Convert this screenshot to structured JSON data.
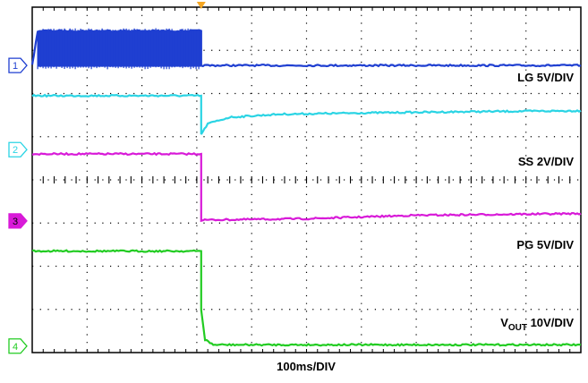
{
  "chart_data": {
    "type": "line",
    "title": "",
    "xlabel": "100ms/DIV",
    "xlim": [
      0,
      10
    ],
    "ylim": [
      -4,
      4
    ],
    "grid": true,
    "trigger_marker_color": "#f5a623",
    "series": [
      {
        "name": "LG 5V/DIV",
        "marker": "1",
        "color": "#1f3fd1",
        "marker_style": "outline",
        "ground": 2.65,
        "points": [
          [
            0,
            2.65
          ],
          [
            0.1,
            3.45
          ],
          [
            3.08,
            3.45
          ],
          [
            3.08,
            2.65
          ],
          [
            10,
            2.65
          ]
        ],
        "noise_band": [
          [
            0.1,
            3.08,
            2.62,
            3.45
          ]
        ]
      },
      {
        "name": "SS 2V/DIV",
        "marker": "2",
        "color": "#2ad4e4",
        "marker_style": "outline",
        "ground": 0.7,
        "points": [
          [
            0,
            1.95
          ],
          [
            3.08,
            1.95
          ],
          [
            3.08,
            1.05
          ],
          [
            3.2,
            1.3
          ],
          [
            3.6,
            1.45
          ],
          [
            4.5,
            1.52
          ],
          [
            6,
            1.55
          ],
          [
            8,
            1.58
          ],
          [
            10,
            1.6
          ]
        ]
      },
      {
        "name": "PG 5V/DIV",
        "marker": "3",
        "color": "#d81ad8",
        "marker_style": "filled",
        "ground": -0.95,
        "points": [
          [
            0,
            0.6
          ],
          [
            3.08,
            0.6
          ],
          [
            3.08,
            -0.93
          ],
          [
            5,
            -0.9
          ],
          [
            7,
            -0.82
          ],
          [
            10,
            -0.78
          ]
        ]
      },
      {
        "name": "VOUT 10V/DIV",
        "name_main": "V",
        "name_sub": "OUT",
        "name_rest": " 10V/DIV",
        "marker": "4",
        "color": "#22cc22",
        "marker_style": "outline",
        "ground": -3.85,
        "points": [
          [
            0,
            -1.65
          ],
          [
            3.08,
            -1.65
          ],
          [
            3.08,
            -3.0
          ],
          [
            3.15,
            -3.7
          ],
          [
            3.3,
            -3.82
          ],
          [
            10,
            -3.82
          ]
        ]
      }
    ]
  }
}
